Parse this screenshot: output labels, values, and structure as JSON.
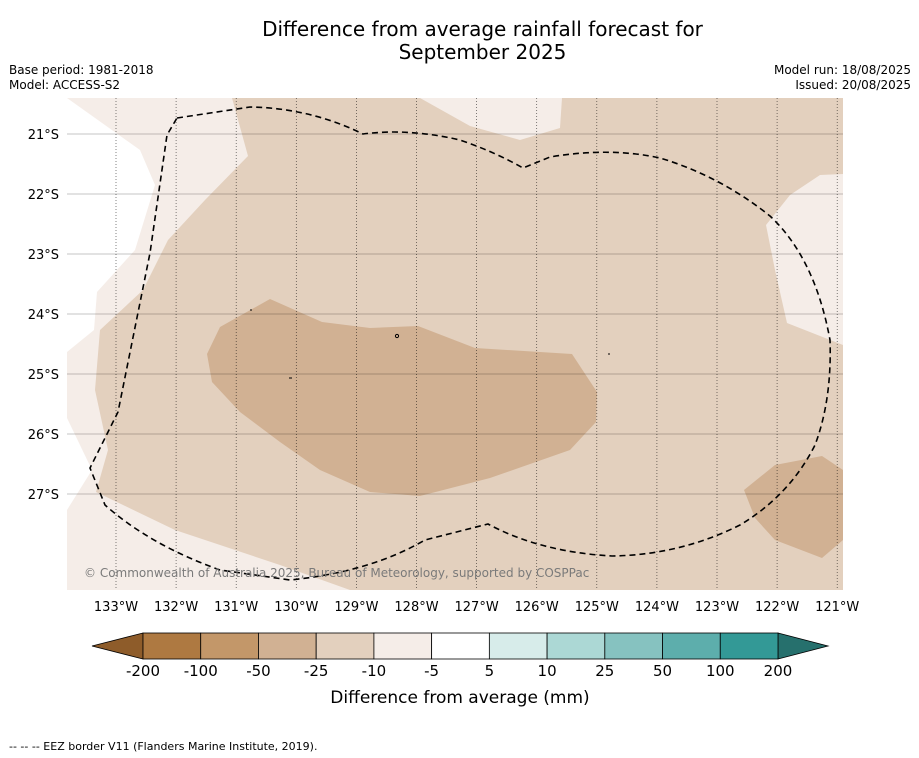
{
  "title_line1": "Difference from average rainfall forecast for",
  "title_line2": "September 2025",
  "base_period": "Base period: 1981-2018",
  "model": "Model: ACCESS-S2",
  "model_run": "Model run: 18/08/2025",
  "issued": "Issued: 20/08/2025",
  "copyright": "© Commonwealth of Australia 2025, Bureau of Meteorology, supported by COSPPac",
  "lat_labels": [
    "21°S",
    "22°S",
    "23°S",
    "24°S",
    "25°S",
    "26°S",
    "27°S"
  ],
  "lon_labels": [
    "133°W",
    "132°W",
    "131°W",
    "130°W",
    "129°W",
    "128°W",
    "127°W",
    "126°W",
    "125°W",
    "124°W",
    "123°W",
    "122°W",
    "121°W"
  ],
  "colorbar": {
    "label": "Difference from average (mm)",
    "ticks": [
      "-200",
      "-100",
      "-50",
      "-25",
      "-10",
      "-5",
      "5",
      "10",
      "25",
      "50",
      "100",
      "200"
    ],
    "colors": [
      "#ae7941",
      "#c39769",
      "#d1b193",
      "#e3d0be",
      "#f5ede8",
      "#ffffff",
      "#d7ecea",
      "#acd8d5",
      "#86c2c0",
      "#5daeac",
      "#339996"
    ],
    "under_color": "#8e5c2a",
    "over_color": "#26706d"
  },
  "legend_note": "-- -- -- EEZ border V11 (Flanders Marine Institute, 2019)."
}
